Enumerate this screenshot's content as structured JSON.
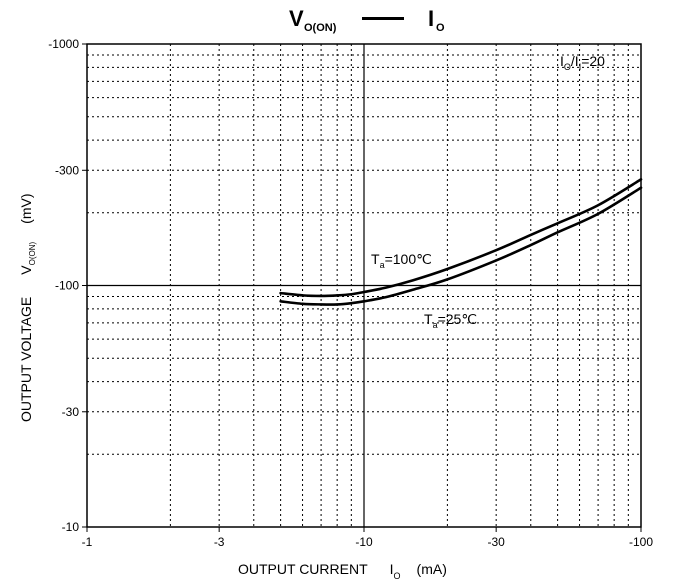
{
  "chart_data": {
    "type": "line",
    "title": {
      "left_main": "V",
      "left_sub": "O(ON)",
      "right_main": "I",
      "right_sub": "O"
    },
    "xlabel": {
      "prefix": "OUTPUT CURRENT",
      "symbol": "I",
      "symbol_sub": "O",
      "unit": "(mA)"
    },
    "ylabel": {
      "prefix": "OUTPUT VOLTAGE",
      "symbol": "V",
      "symbol_sub": "O(ON)",
      "unit": "(mV)"
    },
    "x_scale": "log",
    "y_scale": "log",
    "xlim": [
      -1,
      -100
    ],
    "ylim": [
      -10,
      -1000
    ],
    "x_ticks": [
      "-1",
      "-3",
      "-10",
      "-30",
      "-100"
    ],
    "y_ticks": [
      "-1000",
      "-300",
      "-100",
      "-30",
      "-10"
    ],
    "grid": true,
    "annotations": {
      "ratio": {
        "main": "I",
        "sub1": "O",
        "mid": "/I",
        "sub2": "I",
        "tail": "=20"
      },
      "t100": {
        "main": "T",
        "sub": "a",
        "tail": "=100℃"
      },
      "t25": {
        "main": "T",
        "sub": "a",
        "tail": "=25℃"
      }
    },
    "series": [
      {
        "label": "Ta=100℃",
        "x": [
          -5,
          -6,
          -7,
          -8,
          -9,
          -10,
          -12,
          -15,
          -20,
          -30,
          -40,
          -50,
          -70,
          -100
        ],
        "y": [
          -93,
          -91,
          -90.5,
          -91,
          -92,
          -94,
          -98,
          -105,
          -117,
          -140,
          -162,
          -181,
          -215,
          -275
        ]
      },
      {
        "label": "Ta=25℃",
        "x": [
          -5,
          -6,
          -7,
          -8,
          -9,
          -10,
          -12,
          -15,
          -20,
          -30,
          -40,
          -50,
          -70,
          -100
        ],
        "y": [
          -86,
          -84,
          -83.5,
          -83.5,
          -84.5,
          -86,
          -89.5,
          -96,
          -106,
          -127,
          -147,
          -166,
          -198,
          -254
        ]
      }
    ]
  }
}
